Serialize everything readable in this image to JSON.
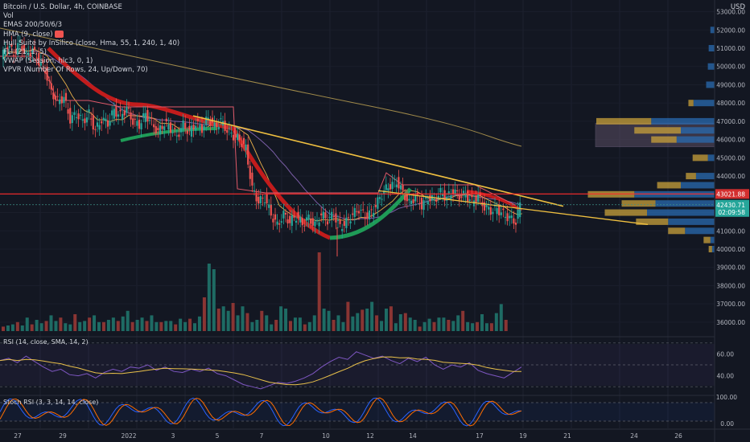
{
  "chart_data": {
    "type": "candlestick",
    "title": "Bitcoin / U.S. Dollar, 4h, COINBASE",
    "currency": "USD",
    "colors": {
      "up": "#26a69a",
      "down": "#ef5350",
      "bg": "#131722",
      "trendline": "#f0c040",
      "hline": "#ff2b2b"
    },
    "indicators": [
      "Vol",
      "EMAS 200/50/6/3",
      "HMA (9, close)",
      "Hull Suite by InSilico (close, Hma, 55, 1, 240, 1, 40)",
      "FLI (21, 1, 5)",
      "VWAP (Session, hlc3, 0, 1)",
      "VPVR (Number Of Rows, 24, Up/Down, 70)"
    ],
    "price_axis": {
      "ticks": [
        "53000.00",
        "52000.00",
        "51000.00",
        "50000.00",
        "49000.00",
        "48000.00",
        "47000.00",
        "46000.00",
        "45000.00",
        "44000.00",
        "43000.00",
        "42000.00",
        "41000.00",
        "40000.00",
        "39000.00",
        "38000.00",
        "37000.00",
        "36000.00"
      ],
      "range": [
        35600,
        53200
      ]
    },
    "price_labels": {
      "hline": "43021.88",
      "last": "42430.71",
      "countdown": "02:09:58"
    },
    "x_ticks": [
      "27",
      "29",
      "2022",
      "3",
      "5",
      "7",
      "10",
      "12",
      "14",
      "17",
      "19",
      "21",
      "24",
      "26"
    ],
    "close_path": [
      [
        0,
        50400
      ],
      [
        6,
        51200
      ],
      [
        12,
        50700
      ],
      [
        18,
        51300
      ],
      [
        24,
        50600
      ],
      [
        30,
        50900
      ],
      [
        36,
        50300
      ],
      [
        42,
        49800
      ],
      [
        48,
        48600
      ],
      [
        54,
        48100
      ],
      [
        60,
        48300
      ],
      [
        66,
        47100
      ],
      [
        72,
        47400
      ],
      [
        78,
        47000
      ],
      [
        84,
        47400
      ],
      [
        90,
        46500
      ],
      [
        96,
        47100
      ],
      [
        102,
        46900
      ],
      [
        108,
        47600
      ],
      [
        114,
        47300
      ],
      [
        120,
        47700
      ],
      [
        126,
        47000
      ],
      [
        132,
        46800
      ],
      [
        138,
        47400
      ],
      [
        144,
        46900
      ],
      [
        150,
        46400
      ],
      [
        156,
        46900
      ],
      [
        162,
        46600
      ],
      [
        168,
        46200
      ],
      [
        174,
        46800
      ],
      [
        180,
        46400
      ],
      [
        186,
        46900
      ],
      [
        192,
        46600
      ],
      [
        198,
        47200
      ],
      [
        204,
        46700
      ],
      [
        210,
        47000
      ],
      [
        216,
        46500
      ],
      [
        222,
        46200
      ],
      [
        228,
        46000
      ],
      [
        234,
        45500
      ],
      [
        240,
        43300
      ],
      [
        246,
        42600
      ],
      [
        252,
        42800
      ],
      [
        258,
        41900
      ],
      [
        264,
        41300
      ],
      [
        270,
        41900
      ],
      [
        276,
        41500
      ],
      [
        282,
        41800
      ],
      [
        288,
        41400
      ],
      [
        294,
        41700
      ],
      [
        300,
        41300
      ],
      [
        306,
        41900
      ],
      [
        312,
        41600
      ],
      [
        318,
        41900
      ],
      [
        324,
        41200
      ],
      [
        330,
        41500
      ],
      [
        336,
        41900
      ],
      [
        342,
        42200
      ],
      [
        348,
        41800
      ],
      [
        354,
        42000
      ],
      [
        360,
        42600
      ],
      [
        366,
        43200
      ],
      [
        372,
        43500
      ],
      [
        378,
        43700
      ],
      [
        384,
        43100
      ],
      [
        390,
        42500
      ],
      [
        396,
        42900
      ],
      [
        402,
        42400
      ],
      [
        408,
        42800
      ],
      [
        414,
        42700
      ],
      [
        420,
        43100
      ],
      [
        426,
        42800
      ],
      [
        432,
        43200
      ],
      [
        438,
        42900
      ],
      [
        444,
        43000
      ],
      [
        450,
        42600
      ],
      [
        456,
        42900
      ],
      [
        462,
        42300
      ],
      [
        468,
        42100
      ],
      [
        474,
        42200
      ],
      [
        480,
        41900
      ],
      [
        486,
        41700
      ],
      [
        492,
        41500
      ],
      [
        496,
        42430
      ]
    ],
    "volume": [
      4,
      5,
      6,
      8,
      5,
      12,
      6,
      10,
      7,
      9,
      14,
      9,
      12,
      7,
      6,
      15,
      8,
      9,
      12,
      14,
      8,
      8,
      10,
      12,
      9,
      13,
      18,
      8,
      10,
      12,
      9,
      14,
      8,
      8,
      9,
      9,
      6,
      11,
      8,
      11,
      7,
      13,
      30,
      60,
      55,
      20,
      22,
      18,
      25,
      14,
      22,
      16,
      8,
      10,
      18,
      14,
      6,
      10,
      22,
      20,
      9,
      12,
      12,
      6,
      8,
      14,
      70,
      20,
      18,
      10,
      14,
      8,
      26,
      13,
      16,
      19,
      20,
      26,
      14,
      9,
      20,
      22,
      7,
      15,
      16,
      12,
      10,
      4,
      8,
      11,
      8,
      12,
      12,
      10,
      9,
      14,
      18,
      8,
      7,
      8,
      15,
      7,
      7,
      16,
      24,
      10
    ],
    "volume_profile": [
      [
        53000,
        0,
        0
      ],
      [
        52000,
        0,
        5
      ],
      [
        51000,
        0,
        7
      ],
      [
        50000,
        0,
        8
      ],
      [
        49000,
        0,
        10
      ],
      [
        48000,
        6,
        25
      ],
      [
        47000,
        65,
        75
      ],
      [
        46500,
        55,
        40
      ],
      [
        46000,
        30,
        45
      ],
      [
        45000,
        18,
        8
      ],
      [
        44000,
        12,
        22
      ],
      [
        43500,
        28,
        40
      ],
      [
        43000,
        55,
        95
      ],
      [
        42500,
        40,
        70
      ],
      [
        42000,
        50,
        80
      ],
      [
        41500,
        38,
        55
      ],
      [
        41000,
        20,
        35
      ],
      [
        40500,
        8,
        5
      ],
      [
        40000,
        4,
        3
      ]
    ],
    "rsi": {
      "title": "RSI (14, close, SMA, 14, 2)",
      "ticks": [
        "60.00",
        "40.00"
      ],
      "values": [
        54,
        56,
        52,
        58,
        53,
        48,
        44,
        46,
        41,
        40,
        42,
        38,
        43,
        46,
        44,
        48,
        47,
        50,
        45,
        48,
        44,
        43,
        46,
        44,
        47,
        42,
        40,
        36,
        32,
        30,
        28,
        31,
        34,
        33,
        35,
        38,
        42,
        48,
        53,
        57,
        55,
        62,
        59,
        56,
        58,
        54,
        51,
        56,
        53,
        57,
        50,
        46,
        50,
        48,
        52,
        45,
        42,
        40,
        38,
        43,
        48
      ]
    },
    "stoch_rsi": {
      "title": "Stoch RSI (3, 3, 14, 14, close)",
      "ticks": [
        "100.00",
        "0.00"
      ]
    }
  }
}
